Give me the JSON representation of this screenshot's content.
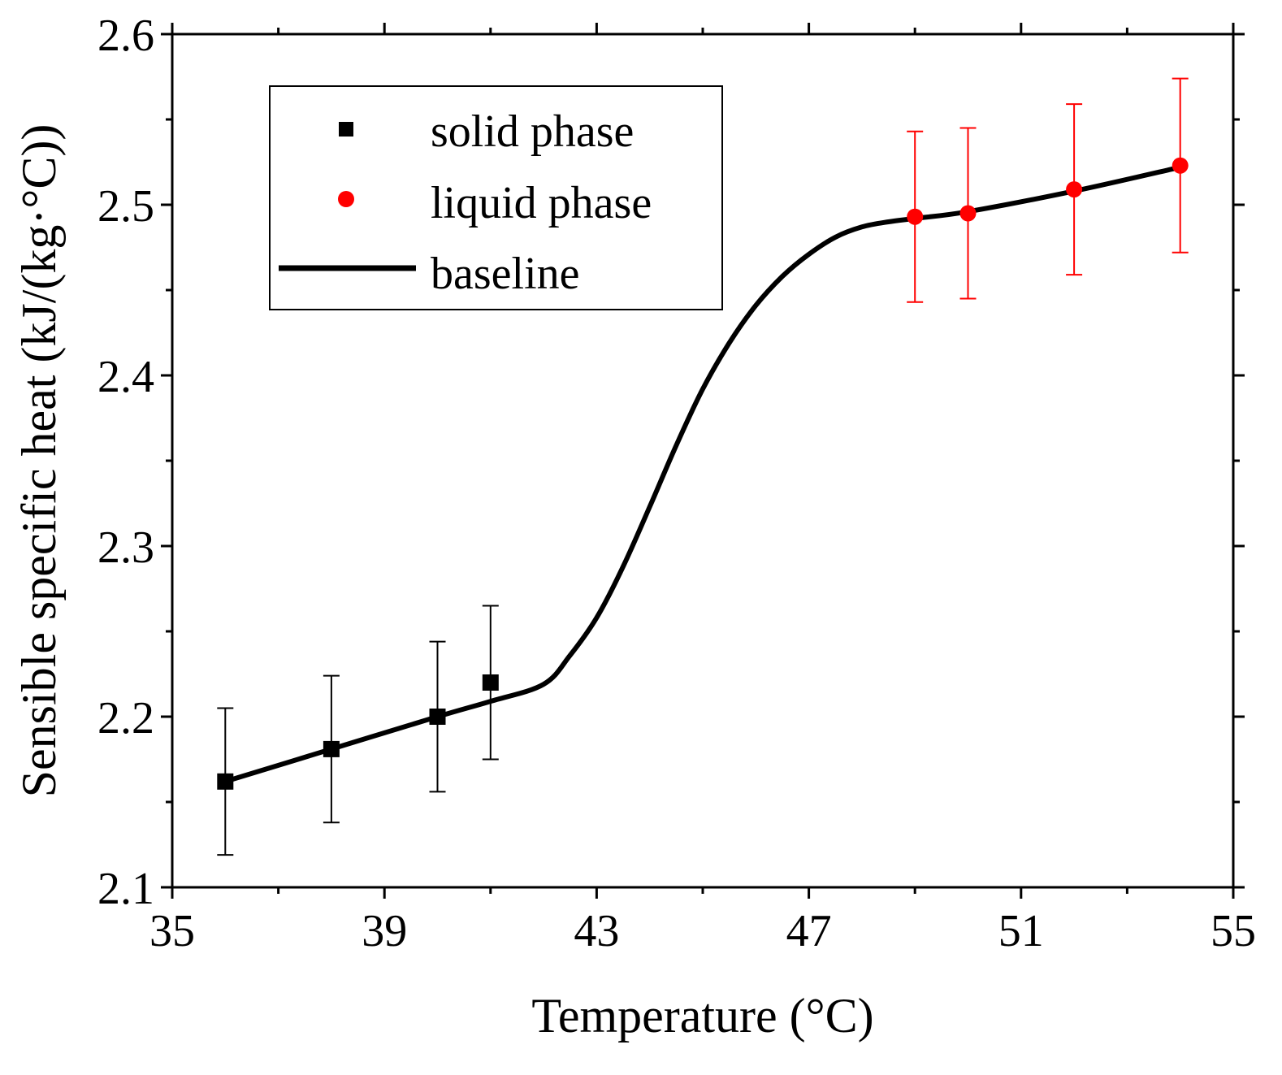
{
  "chart_data": {
    "type": "scatter",
    "title": "",
    "xlabel": "Temperature (°C)",
    "ylabel": "Sensible specific heat (kJ/(kg·°C))",
    "xlim": [
      35,
      55
    ],
    "ylim": [
      2.1,
      2.6
    ],
    "xticks": [
      35,
      39,
      43,
      47,
      51,
      55
    ],
    "xtick_labels": [
      "35",
      "39",
      "43",
      "47",
      "51",
      "55"
    ],
    "yticks": [
      2.1,
      2.2,
      2.3,
      2.4,
      2.5,
      2.6
    ],
    "ytick_labels": [
      "2.1",
      "2.2",
      "2.3",
      "2.4",
      "2.5",
      "2.6"
    ],
    "grid": false,
    "legend_position": "top-left",
    "series": [
      {
        "name": "solid phase",
        "type": "scatter",
        "marker": "square",
        "color": "#000000",
        "x": [
          36.0,
          38.0,
          40.0,
          41.0
        ],
        "y": [
          2.162,
          2.181,
          2.2,
          2.22
        ],
        "error": [
          0.043,
          0.043,
          0.044,
          0.045
        ]
      },
      {
        "name": "liquid phase",
        "type": "scatter",
        "marker": "circle",
        "color": "#ff0000",
        "x": [
          49.0,
          50.0,
          52.0,
          54.0
        ],
        "y": [
          2.493,
          2.495,
          2.509,
          2.523
        ],
        "error": [
          0.05,
          0.05,
          0.05,
          0.051
        ]
      },
      {
        "name": "baseline",
        "type": "line",
        "color": "#000000",
        "x": [
          36.0,
          38.0,
          40.0,
          41.0,
          42.0,
          42.5,
          43.0,
          43.5,
          44.0,
          44.5,
          45.0,
          45.5,
          46.0,
          46.5,
          47.0,
          47.5,
          48.0,
          48.5,
          49.0,
          50.0,
          52.0,
          54.0
        ],
        "y": [
          2.162,
          2.181,
          2.2,
          2.209,
          2.219,
          2.236,
          2.258,
          2.288,
          2.323,
          2.359,
          2.392,
          2.419,
          2.441,
          2.458,
          2.471,
          2.481,
          2.487,
          2.49,
          2.492,
          2.496,
          2.508,
          2.522
        ]
      }
    ]
  }
}
